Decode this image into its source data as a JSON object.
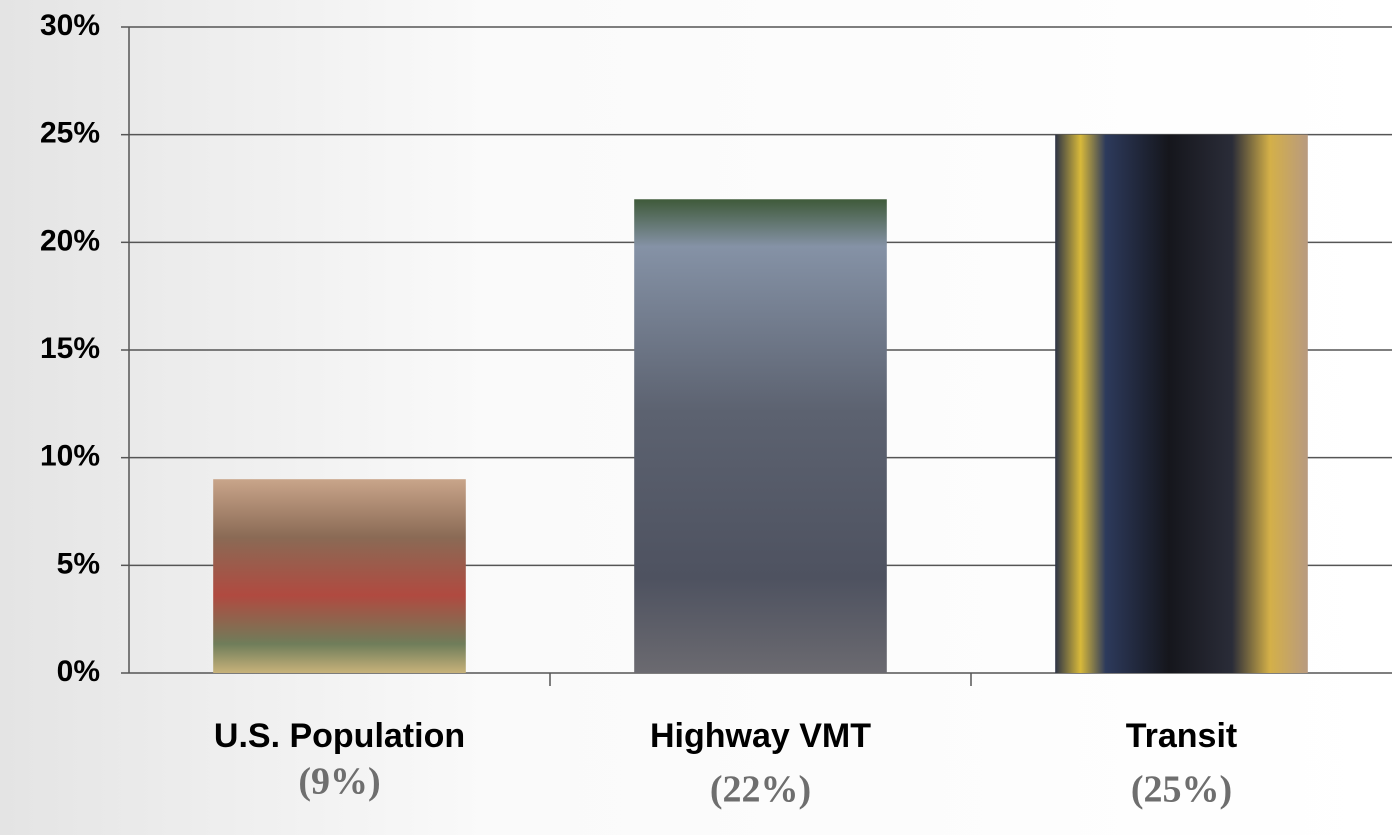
{
  "chart_data": {
    "type": "bar",
    "categories": [
      "U.S. Population",
      "Highway VMT",
      "Transit"
    ],
    "values": [
      9,
      22,
      25
    ],
    "value_labels": [
      "(9%)",
      "(22%)",
      "(25%)"
    ],
    "ylim": [
      0,
      30
    ],
    "yticks": [
      {
        "value": 0,
        "label": "0%"
      },
      {
        "value": 5,
        "label": "5%"
      },
      {
        "value": 10,
        "label": "10%"
      },
      {
        "value": 15,
        "label": "15%"
      },
      {
        "value": 20,
        "label": "20%"
      },
      {
        "value": 25,
        "label": "25%"
      },
      {
        "value": 30,
        "label": "30%"
      }
    ],
    "grid": true
  }
}
